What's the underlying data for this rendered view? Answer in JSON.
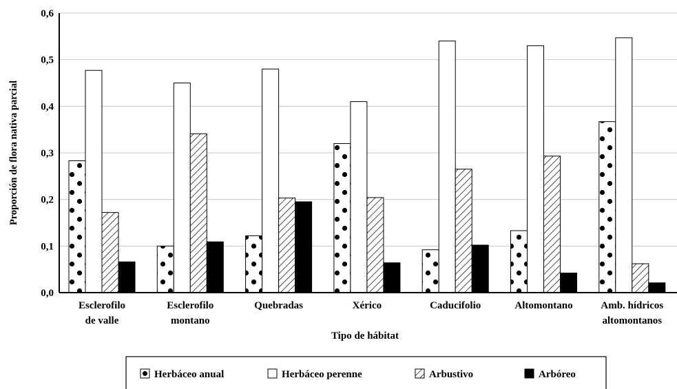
{
  "chart_data": {
    "type": "bar",
    "title": "",
    "xlabel": "Tipo de hábitat",
    "ylabel": "Proporción de flora nativa parcial",
    "ylim": [
      0,
      0.6
    ],
    "yticks": [
      "0,0",
      "0,1",
      "0,2",
      "0,3",
      "0,4",
      "0,5",
      "0,6"
    ],
    "grid": true,
    "legend_position": "bottom",
    "categories": [
      [
        "Esclerofilo",
        "de valle"
      ],
      [
        "Esclerofilo",
        "montano"
      ],
      [
        "Quebradas"
      ],
      [
        "Xérico"
      ],
      [
        "Caducifolio"
      ],
      [
        "Altomontano"
      ],
      [
        "Amb. hídricos",
        "altomontanos"
      ]
    ],
    "series": [
      {
        "name": "Herbáceo anual",
        "pattern": "dots",
        "values": [
          0.283,
          0.1,
          0.122,
          0.32,
          0.092,
          0.133,
          0.367
        ]
      },
      {
        "name": "Herbáceo perenne",
        "pattern": "white",
        "values": [
          0.477,
          0.45,
          0.48,
          0.41,
          0.54,
          0.53,
          0.547
        ]
      },
      {
        "name": "Arbustivo",
        "pattern": "hatch",
        "values": [
          0.172,
          0.341,
          0.203,
          0.204,
          0.265,
          0.293,
          0.062
        ]
      },
      {
        "name": "Arbóreo",
        "pattern": "solid",
        "values": [
          0.066,
          0.109,
          0.195,
          0.064,
          0.102,
          0.042,
          0.021
        ]
      }
    ]
  }
}
